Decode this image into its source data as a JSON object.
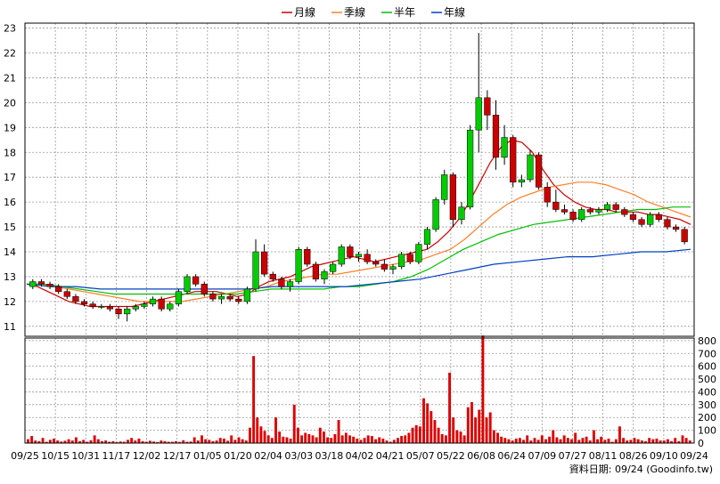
{
  "legend": [
    {
      "label": "月線",
      "color": "#cc0000"
    },
    {
      "label": "季線",
      "color": "#ff7f27"
    },
    {
      "label": "半年",
      "color": "#00c000"
    },
    {
      "label": "年線",
      "color": "#0040c0"
    }
  ],
  "footer_text": "資料日期: 09/24  (Goodinfo.tw)",
  "chart_data": [
    {
      "type": "line",
      "grid": true,
      "legend_position": "top-center",
      "y_ticks": [
        11,
        12,
        13,
        14,
        15,
        16,
        17,
        18,
        19,
        20,
        21,
        22,
        23
      ],
      "ylim": [
        10.6,
        23.2
      ],
      "x_tick_labels": [
        "09/25",
        "10/15",
        "10/31",
        "11/17",
        "12/02",
        "12/17",
        "01/05",
        "01/20",
        "02/04",
        "03/03",
        "03/18",
        "04/02",
        "04/21",
        "05/07",
        "05/22",
        "06/08",
        "06/24",
        "07/09",
        "07/27",
        "08/11",
        "08/26",
        "09/10",
        "09/24"
      ],
      "candles": [
        [
          12.6,
          12.9,
          12.5,
          12.8
        ],
        [
          12.8,
          12.9,
          12.6,
          12.7
        ],
        [
          12.7,
          12.8,
          12.5,
          12.6
        ],
        [
          12.6,
          12.7,
          12.3,
          12.4
        ],
        [
          12.4,
          12.5,
          12.1,
          12.2
        ],
        [
          12.2,
          12.3,
          11.9,
          12.0
        ],
        [
          12.0,
          12.1,
          11.8,
          11.9
        ],
        [
          11.9,
          12.0,
          11.7,
          11.8
        ],
        [
          11.8,
          11.9,
          11.7,
          11.8
        ],
        [
          11.8,
          11.9,
          11.6,
          11.7
        ],
        [
          11.7,
          11.8,
          11.3,
          11.5
        ],
        [
          11.5,
          11.8,
          11.2,
          11.7
        ],
        [
          11.7,
          11.9,
          11.6,
          11.8
        ],
        [
          11.8,
          12.0,
          11.7,
          11.9
        ],
        [
          11.9,
          12.2,
          11.8,
          12.1
        ],
        [
          12.1,
          12.2,
          11.6,
          11.7
        ],
        [
          11.7,
          12.0,
          11.6,
          11.9
        ],
        [
          11.9,
          12.5,
          11.8,
          12.4
        ],
        [
          12.4,
          13.1,
          12.3,
          13.0
        ],
        [
          13.0,
          13.1,
          12.6,
          12.7
        ],
        [
          12.7,
          12.8,
          12.2,
          12.3
        ],
        [
          12.3,
          12.4,
          12.0,
          12.1
        ],
        [
          12.1,
          12.3,
          11.9,
          12.2
        ],
        [
          12.2,
          12.3,
          12.0,
          12.1
        ],
        [
          12.1,
          12.2,
          11.9,
          12.0
        ],
        [
          12.0,
          12.6,
          11.9,
          12.5
        ],
        [
          12.5,
          14.5,
          12.4,
          14.0
        ],
        [
          14.0,
          14.3,
          13.0,
          13.1
        ],
        [
          13.1,
          13.2,
          12.8,
          12.9
        ],
        [
          12.9,
          13.0,
          12.5,
          12.6
        ],
        [
          12.6,
          12.9,
          12.4,
          12.8
        ],
        [
          12.8,
          14.2,
          12.7,
          14.1
        ],
        [
          14.1,
          14.2,
          13.4,
          13.5
        ],
        [
          13.5,
          13.6,
          12.8,
          12.9
        ],
        [
          12.9,
          13.3,
          12.7,
          13.2
        ],
        [
          13.2,
          13.6,
          13.1,
          13.5
        ],
        [
          13.5,
          14.3,
          13.4,
          14.2
        ],
        [
          14.2,
          14.3,
          13.7,
          13.8
        ],
        [
          13.8,
          14.0,
          13.6,
          13.9
        ],
        [
          13.9,
          14.1,
          13.5,
          13.6
        ],
        [
          13.6,
          13.7,
          13.4,
          13.5
        ],
        [
          13.5,
          13.7,
          13.2,
          13.3
        ],
        [
          13.3,
          13.5,
          13.1,
          13.4
        ],
        [
          13.4,
          14.0,
          13.3,
          13.9
        ],
        [
          13.9,
          14.0,
          13.5,
          13.6
        ],
        [
          13.6,
          14.4,
          13.5,
          14.3
        ],
        [
          14.3,
          15.0,
          14.1,
          14.9
        ],
        [
          14.9,
          16.2,
          14.8,
          16.1
        ],
        [
          16.1,
          17.3,
          15.9,
          17.1
        ],
        [
          17.1,
          17.2,
          15.0,
          15.3
        ],
        [
          15.3,
          16.0,
          15.1,
          15.8
        ],
        [
          15.8,
          19.1,
          15.7,
          18.9
        ],
        [
          18.9,
          22.8,
          18.0,
          20.2
        ],
        [
          20.2,
          20.5,
          18.9,
          19.5
        ],
        [
          19.5,
          20.1,
          17.3,
          17.8
        ],
        [
          17.8,
          19.1,
          17.5,
          18.6
        ],
        [
          18.6,
          18.7,
          16.6,
          16.8
        ],
        [
          16.8,
          17.1,
          16.6,
          16.9
        ],
        [
          16.9,
          18.1,
          16.8,
          17.9
        ],
        [
          17.9,
          18.0,
          16.5,
          16.6
        ],
        [
          16.6,
          16.8,
          15.8,
          16.0
        ],
        [
          16.0,
          16.5,
          15.6,
          15.7
        ],
        [
          15.7,
          15.9,
          15.5,
          15.6
        ],
        [
          15.6,
          15.7,
          15.2,
          15.3
        ],
        [
          15.3,
          15.8,
          15.2,
          15.7
        ],
        [
          15.7,
          15.8,
          15.5,
          15.6
        ],
        [
          15.6,
          15.8,
          15.5,
          15.7
        ],
        [
          15.7,
          16.0,
          15.6,
          15.9
        ],
        [
          15.9,
          16.0,
          15.6,
          15.7
        ],
        [
          15.7,
          15.8,
          15.4,
          15.5
        ],
        [
          15.5,
          15.6,
          15.2,
          15.3
        ],
        [
          15.3,
          15.4,
          15.0,
          15.1
        ],
        [
          15.1,
          15.6,
          15.0,
          15.5
        ],
        [
          15.5,
          15.6,
          15.2,
          15.3
        ],
        [
          15.3,
          15.4,
          14.9,
          15.0
        ],
        [
          15.0,
          15.1,
          14.8,
          14.9
        ],
        [
          14.9,
          15.0,
          14.3,
          14.4
        ]
      ],
      "series": [
        {
          "name": "月線",
          "color": "#cc0000",
          "values": [
            12.7,
            12.6,
            12.4,
            12.2,
            12.0,
            11.9,
            11.8,
            11.8,
            11.8,
            11.8,
            11.8,
            11.9,
            12.0,
            12.1,
            12.2,
            12.3,
            12.4,
            12.4,
            12.4,
            12.3,
            12.2,
            12.3,
            12.6,
            12.8,
            12.9,
            13.0,
            13.2,
            13.4,
            13.5,
            13.6,
            13.7,
            13.8,
            13.7,
            13.6,
            13.7,
            13.8,
            13.9,
            14.0,
            14.1,
            14.4,
            14.8,
            15.3,
            16.0,
            16.8,
            17.6,
            18.2,
            18.5,
            18.4,
            18.0,
            17.3,
            16.7,
            16.3,
            16.0,
            15.8,
            15.7,
            15.7,
            15.6,
            15.6,
            15.6,
            15.5,
            15.5,
            15.4,
            15.3,
            15.1
          ]
        },
        {
          "name": "季線",
          "color": "#ff7f27",
          "values": [
            12.7,
            12.7,
            12.6,
            12.5,
            12.4,
            12.3,
            12.2,
            12.1,
            12.0,
            12.0,
            12.0,
            12.0,
            12.1,
            12.2,
            12.3,
            12.4,
            12.5,
            12.6,
            12.8,
            12.9,
            13.0,
            13.1,
            13.1,
            13.2,
            13.3,
            13.4,
            13.5,
            13.6,
            13.7,
            13.9,
            14.1,
            14.5,
            15.0,
            15.5,
            15.9,
            16.2,
            16.4,
            16.6,
            16.7,
            16.8,
            16.8,
            16.7,
            16.5,
            16.3,
            16.0,
            15.8,
            15.6,
            15.4
          ]
        },
        {
          "name": "半年",
          "color": "#00c000",
          "values": [
            12.7,
            12.7,
            12.6,
            12.5,
            12.4,
            12.3,
            12.3,
            12.3,
            12.3,
            12.3,
            12.3,
            12.3,
            12.3,
            12.4,
            12.5,
            12.5,
            12.5,
            12.5,
            12.6,
            12.6,
            12.7,
            12.8,
            13.0,
            13.3,
            13.7,
            14.1,
            14.4,
            14.7,
            14.9,
            15.1,
            15.2,
            15.3,
            15.4,
            15.5,
            15.6,
            15.7,
            15.7,
            15.8,
            15.8
          ]
        },
        {
          "name": "年線",
          "color": "#0040c0",
          "values": [
            12.7,
            12.6,
            12.6,
            12.5,
            12.5,
            12.5,
            12.5,
            12.5,
            12.5,
            12.5,
            12.6,
            12.6,
            12.6,
            12.6,
            12.7,
            12.8,
            12.9,
            13.1,
            13.3,
            13.5,
            13.6,
            13.7,
            13.8,
            13.8,
            13.9,
            14.0,
            14.0,
            14.1
          ]
        }
      ]
    },
    {
      "type": "bar",
      "grid": true,
      "y_ticks": [
        0,
        100,
        200,
        300,
        400,
        500,
        600,
        700,
        800
      ],
      "ylim": [
        0,
        820
      ],
      "series": [
        {
          "name": "",
          "color": "#dd0000",
          "values": [
            30,
            55,
            20,
            15,
            40,
            10,
            25,
            35,
            20,
            12,
            18,
            30,
            20,
            45,
            15,
            25,
            10,
            22,
            60,
            30,
            15,
            20,
            10,
            14,
            8,
            12,
            10,
            25,
            40,
            20,
            35,
            15,
            10,
            18,
            12,
            8,
            20,
            15,
            10,
            10,
            14,
            9,
            22,
            10,
            12,
            45,
            20,
            60,
            30,
            25,
            15,
            20,
            40,
            35,
            18,
            60,
            25,
            45,
            30,
            20,
            120,
            680,
            200,
            130,
            95,
            60,
            40,
            200,
            90,
            50,
            45,
            35,
            300,
            120,
            60,
            80,
            70,
            60,
            45,
            120,
            90,
            45,
            40,
            70,
            180,
            60,
            80,
            60,
            50,
            35,
            25,
            40,
            60,
            55,
            30,
            45,
            35,
            20,
            10,
            25,
            40,
            55,
            60,
            80,
            120,
            140,
            130,
            350,
            310,
            250,
            180,
            120,
            70,
            60,
            550,
            200,
            100,
            90,
            60,
            280,
            320,
            200,
            260,
            840,
            200,
            240,
            100,
            80,
            50,
            40,
            30,
            20,
            35,
            40,
            25,
            60,
            20,
            40,
            25,
            60,
            30,
            50,
            100,
            45,
            30,
            60,
            40,
            30,
            80,
            25,
            40,
            50,
            20,
            100,
            30,
            50,
            25,
            35,
            10,
            30,
            130,
            40,
            20,
            25,
            40,
            30,
            20,
            15,
            40,
            30,
            35,
            20,
            20,
            30,
            15,
            40,
            15,
            60,
            40,
            20
          ]
        }
      ]
    }
  ]
}
